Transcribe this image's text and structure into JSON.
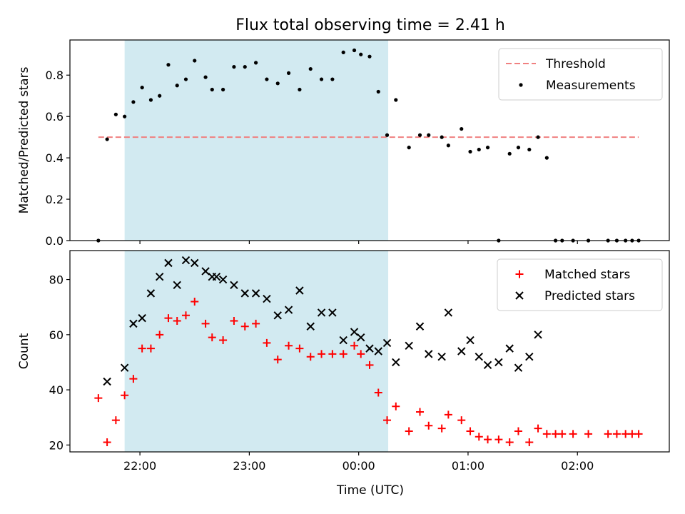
{
  "chart_data": {
    "title": "Flux total observing time = 2.41 h",
    "xlabel": "Time (UTC)",
    "x_unit": "hours since 21:00 UTC",
    "x_ticks": [
      {
        "value": 1.0,
        "label": "22:00"
      },
      {
        "value": 2.0,
        "label": "23:00"
      },
      {
        "value": 3.0,
        "label": "00:00"
      },
      {
        "value": 4.0,
        "label": "01:00"
      },
      {
        "value": 5.0,
        "label": "02:00"
      }
    ],
    "xlim": [
      0.36,
      5.84
    ],
    "shaded_interval": {
      "start": 0.86,
      "end": 3.27,
      "color": "#add8e6"
    },
    "panels": [
      {
        "type": "scatter",
        "ylabel": "Matched/Predicted stars",
        "ylim": [
          0.0,
          0.97
        ],
        "y_ticks": [
          0.0,
          0.2,
          0.4,
          0.6,
          0.8
        ],
        "y_format": 1,
        "legend_position": "top-right",
        "threshold": {
          "name": "Threshold",
          "y": 0.5,
          "x_start": 0.62,
          "x_end": 5.56,
          "color": "#f08080"
        },
        "series": [
          {
            "name": "Measurements",
            "marker": "dot",
            "color": "#000000",
            "points": [
              [
                0.62,
                0.0
              ],
              [
                0.7,
                0.49
              ],
              [
                0.78,
                0.61
              ],
              [
                0.86,
                0.6
              ],
              [
                0.94,
                0.67
              ],
              [
                1.02,
                0.74
              ],
              [
                1.1,
                0.68
              ],
              [
                1.18,
                0.7
              ],
              [
                1.26,
                0.85
              ],
              [
                1.34,
                0.75
              ],
              [
                1.42,
                0.78
              ],
              [
                1.5,
                0.87
              ],
              [
                1.6,
                0.79
              ],
              [
                1.66,
                0.73
              ],
              [
                1.76,
                0.73
              ],
              [
                1.86,
                0.84
              ],
              [
                1.96,
                0.84
              ],
              [
                2.06,
                0.86
              ],
              [
                2.16,
                0.78
              ],
              [
                2.26,
                0.76
              ],
              [
                2.36,
                0.81
              ],
              [
                2.46,
                0.73
              ],
              [
                2.56,
                0.83
              ],
              [
                2.66,
                0.78
              ],
              [
                2.76,
                0.78
              ],
              [
                2.86,
                0.91
              ],
              [
                2.96,
                0.92
              ],
              [
                3.02,
                0.9
              ],
              [
                3.1,
                0.89
              ],
              [
                3.18,
                0.72
              ],
              [
                3.26,
                0.51
              ],
              [
                3.34,
                0.68
              ],
              [
                3.46,
                0.45
              ],
              [
                3.56,
                0.51
              ],
              [
                3.64,
                0.51
              ],
              [
                3.76,
                0.5
              ],
              [
                3.82,
                0.46
              ],
              [
                3.94,
                0.54
              ],
              [
                4.02,
                0.43
              ],
              [
                4.1,
                0.44
              ],
              [
                4.18,
                0.45
              ],
              [
                4.28,
                0.0
              ],
              [
                4.38,
                0.42
              ],
              [
                4.46,
                0.45
              ],
              [
                4.56,
                0.44
              ],
              [
                4.64,
                0.5
              ],
              [
                4.72,
                0.4
              ],
              [
                4.8,
                0.0
              ],
              [
                4.86,
                0.0
              ],
              [
                4.96,
                0.0
              ],
              [
                5.1,
                0.0
              ],
              [
                5.28,
                0.0
              ],
              [
                5.36,
                0.0
              ],
              [
                5.44,
                0.0
              ],
              [
                5.5,
                0.0
              ],
              [
                5.56,
                0.0
              ]
            ]
          }
        ]
      },
      {
        "type": "scatter",
        "ylabel": "Count",
        "ylim": [
          17.5,
          90.5
        ],
        "y_ticks": [
          20,
          40,
          60,
          80
        ],
        "y_format": 0,
        "legend_position": "top-right",
        "series": [
          {
            "name": "Matched stars",
            "marker": "plus",
            "color": "#ff0000",
            "points": [
              [
                0.62,
                37
              ],
              [
                0.7,
                21
              ],
              [
                0.78,
                29
              ],
              [
                0.86,
                38
              ],
              [
                0.94,
                44
              ],
              [
                1.02,
                55
              ],
              [
                1.1,
                55
              ],
              [
                1.18,
                60
              ],
              [
                1.26,
                66
              ],
              [
                1.34,
                65
              ],
              [
                1.42,
                67
              ],
              [
                1.5,
                72
              ],
              [
                1.6,
                64
              ],
              [
                1.66,
                59
              ],
              [
                1.76,
                58
              ],
              [
                1.86,
                65
              ],
              [
                1.96,
                63
              ],
              [
                2.06,
                64
              ],
              [
                2.16,
                57
              ],
              [
                2.26,
                51
              ],
              [
                2.36,
                56
              ],
              [
                2.46,
                55
              ],
              [
                2.56,
                52
              ],
              [
                2.66,
                53
              ],
              [
                2.76,
                53
              ],
              [
                2.86,
                53
              ],
              [
                2.96,
                56
              ],
              [
                3.02,
                53
              ],
              [
                3.1,
                49
              ],
              [
                3.18,
                39
              ],
              [
                3.26,
                29
              ],
              [
                3.34,
                34
              ],
              [
                3.46,
                25
              ],
              [
                3.56,
                32
              ],
              [
                3.64,
                27
              ],
              [
                3.76,
                26
              ],
              [
                3.82,
                31
              ],
              [
                3.94,
                29
              ],
              [
                4.02,
                25
              ],
              [
                4.1,
                23
              ],
              [
                4.18,
                22
              ],
              [
                4.28,
                22
              ],
              [
                4.38,
                21
              ],
              [
                4.46,
                25
              ],
              [
                4.56,
                21
              ],
              [
                4.64,
                26
              ],
              [
                4.72,
                24
              ],
              [
                4.8,
                24
              ],
              [
                4.86,
                24
              ],
              [
                4.96,
                24
              ],
              [
                5.1,
                24
              ],
              [
                5.28,
                24
              ],
              [
                5.36,
                24
              ],
              [
                5.44,
                24
              ],
              [
                5.5,
                24
              ],
              [
                5.56,
                24
              ]
            ]
          },
          {
            "name": "Predicted stars",
            "marker": "x",
            "color": "#000000",
            "points": [
              [
                0.7,
                43
              ],
              [
                0.86,
                48
              ],
              [
                0.94,
                64
              ],
              [
                1.02,
                66
              ],
              [
                1.1,
                75
              ],
              [
                1.18,
                81
              ],
              [
                1.26,
                86
              ],
              [
                1.34,
                78
              ],
              [
                1.42,
                87
              ],
              [
                1.5,
                86
              ],
              [
                1.6,
                83
              ],
              [
                1.66,
                81
              ],
              [
                1.7,
                81
              ],
              [
                1.76,
                80
              ],
              [
                1.86,
                78
              ],
              [
                1.96,
                75
              ],
              [
                2.06,
                75
              ],
              [
                2.16,
                73
              ],
              [
                2.26,
                67
              ],
              [
                2.36,
                69
              ],
              [
                2.46,
                76
              ],
              [
                2.56,
                63
              ],
              [
                2.66,
                68
              ],
              [
                2.76,
                68
              ],
              [
                2.86,
                58
              ],
              [
                2.96,
                61
              ],
              [
                3.02,
                59
              ],
              [
                3.1,
                55
              ],
              [
                3.18,
                54
              ],
              [
                3.26,
                57
              ],
              [
                3.34,
                50
              ],
              [
                3.46,
                56
              ],
              [
                3.56,
                63
              ],
              [
                3.64,
                53
              ],
              [
                3.76,
                52
              ],
              [
                3.82,
                68
              ],
              [
                3.94,
                54
              ],
              [
                4.02,
                58
              ],
              [
                4.1,
                52
              ],
              [
                4.18,
                49
              ],
              [
                4.28,
                50
              ],
              [
                4.38,
                55
              ],
              [
                4.46,
                48
              ],
              [
                4.56,
                52
              ],
              [
                4.64,
                60
              ]
            ]
          }
        ]
      }
    ]
  }
}
